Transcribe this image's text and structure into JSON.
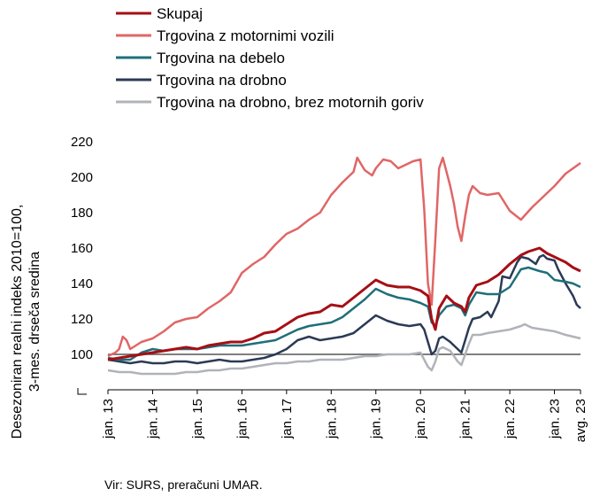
{
  "chart_data": {
    "type": "line",
    "ylabel_lines": [
      "Desezoniran realni indeks 2010=100,",
      "3-mes. drseča sredina"
    ],
    "ylim": [
      80,
      220
    ],
    "yticks": [
      100,
      120,
      140,
      160,
      180,
      200,
      220
    ],
    "reference_line": 100,
    "x_tick_labels": [
      "jan. 13",
      "jan. 14",
      "jan. 15",
      "jan. 16",
      "jan. 17",
      "jan. 18",
      "jan. 19",
      "jan. 20",
      "jan. 21",
      "jan. 22",
      "jan. 23",
      "avg. 23"
    ],
    "x_tick_months": [
      0,
      12,
      24,
      36,
      48,
      60,
      72,
      84,
      96,
      108,
      120,
      127
    ],
    "x_range_months": [
      0,
      127
    ],
    "legend_position": "top-left",
    "source": "Vir: SURS, preračuni UMAR.",
    "series": [
      {
        "name": "Skupaj",
        "color": "#a50f15",
        "points": [
          [
            0,
            97
          ],
          [
            3,
            98
          ],
          [
            6,
            99
          ],
          [
            9,
            100
          ],
          [
            12,
            101
          ],
          [
            15,
            102
          ],
          [
            18,
            103
          ],
          [
            21,
            104
          ],
          [
            24,
            103
          ],
          [
            27,
            105
          ],
          [
            30,
            106
          ],
          [
            33,
            107
          ],
          [
            36,
            107
          ],
          [
            39,
            109
          ],
          [
            42,
            112
          ],
          [
            45,
            113
          ],
          [
            48,
            117
          ],
          [
            51,
            121
          ],
          [
            54,
            123
          ],
          [
            57,
            124
          ],
          [
            60,
            128
          ],
          [
            63,
            127
          ],
          [
            66,
            132
          ],
          [
            69,
            137
          ],
          [
            72,
            142
          ],
          [
            75,
            139
          ],
          [
            78,
            138
          ],
          [
            81,
            138
          ],
          [
            84,
            136
          ],
          [
            86,
            133
          ],
          [
            87,
            120
          ],
          [
            88,
            114
          ],
          [
            89,
            126
          ],
          [
            91,
            133
          ],
          [
            93,
            129
          ],
          [
            95,
            127
          ],
          [
            96,
            124
          ],
          [
            97,
            132
          ],
          [
            99,
            139
          ],
          [
            102,
            141
          ],
          [
            105,
            145
          ],
          [
            108,
            151
          ],
          [
            111,
            156
          ],
          [
            113,
            158
          ],
          [
            116,
            160
          ],
          [
            118,
            157
          ],
          [
            120,
            155
          ],
          [
            123,
            152
          ],
          [
            125,
            149
          ],
          [
            127,
            147
          ]
        ]
      },
      {
        "name": "Trgovina z motornimi vozili",
        "color": "#e06666",
        "points": [
          [
            0,
            99
          ],
          [
            2,
            101
          ],
          [
            3,
            103
          ],
          [
            4,
            110
          ],
          [
            5,
            108
          ],
          [
            6,
            103
          ],
          [
            9,
            107
          ],
          [
            12,
            109
          ],
          [
            15,
            113
          ],
          [
            18,
            118
          ],
          [
            21,
            120
          ],
          [
            24,
            121
          ],
          [
            27,
            126
          ],
          [
            30,
            130
          ],
          [
            33,
            135
          ],
          [
            36,
            146
          ],
          [
            39,
            151
          ],
          [
            42,
            155
          ],
          [
            45,
            162
          ],
          [
            48,
            168
          ],
          [
            51,
            171
          ],
          [
            54,
            176
          ],
          [
            57,
            180
          ],
          [
            60,
            190
          ],
          [
            63,
            197
          ],
          [
            66,
            203
          ],
          [
            67,
            211
          ],
          [
            69,
            204
          ],
          [
            71,
            201
          ],
          [
            72,
            205
          ],
          [
            74,
            210
          ],
          [
            76,
            209
          ],
          [
            78,
            205
          ],
          [
            80,
            207
          ],
          [
            82,
            209
          ],
          [
            84,
            210
          ],
          [
            85,
            182
          ],
          [
            86,
            140
          ],
          [
            87,
            128
          ],
          [
            88,
            165
          ],
          [
            89,
            205
          ],
          [
            90,
            211
          ],
          [
            92,
            195
          ],
          [
            93,
            185
          ],
          [
            94,
            172
          ],
          [
            95,
            164
          ],
          [
            96,
            178
          ],
          [
            97,
            190
          ],
          [
            98,
            195
          ],
          [
            100,
            191
          ],
          [
            102,
            190
          ],
          [
            105,
            191
          ],
          [
            108,
            181
          ],
          [
            111,
            176
          ],
          [
            114,
            183
          ],
          [
            117,
            189
          ],
          [
            120,
            195
          ],
          [
            123,
            202
          ],
          [
            125,
            205
          ],
          [
            127,
            208
          ]
        ]
      },
      {
        "name": "Trgovina na debelo",
        "color": "#1f6f7a",
        "points": [
          [
            0,
            98
          ],
          [
            3,
            97
          ],
          [
            6,
            97
          ],
          [
            9,
            101
          ],
          [
            12,
            103
          ],
          [
            15,
            102
          ],
          [
            18,
            103
          ],
          [
            21,
            103
          ],
          [
            24,
            103
          ],
          [
            27,
            104
          ],
          [
            30,
            105
          ],
          [
            33,
            105
          ],
          [
            36,
            105
          ],
          [
            39,
            106
          ],
          [
            42,
            107
          ],
          [
            45,
            108
          ],
          [
            48,
            111
          ],
          [
            51,
            114
          ],
          [
            54,
            116
          ],
          [
            57,
            117
          ],
          [
            60,
            118
          ],
          [
            63,
            121
          ],
          [
            66,
            126
          ],
          [
            69,
            131
          ],
          [
            72,
            137
          ],
          [
            75,
            134
          ],
          [
            78,
            132
          ],
          [
            81,
            131
          ],
          [
            84,
            129
          ],
          [
            86,
            127
          ],
          [
            87,
            118
          ],
          [
            88,
            116
          ],
          [
            89,
            122
          ],
          [
            91,
            127
          ],
          [
            93,
            128
          ],
          [
            95,
            126
          ],
          [
            96,
            122
          ],
          [
            97,
            128
          ],
          [
            99,
            135
          ],
          [
            102,
            134
          ],
          [
            105,
            134
          ],
          [
            108,
            138
          ],
          [
            111,
            148
          ],
          [
            113,
            149
          ],
          [
            116,
            147
          ],
          [
            118,
            146
          ],
          [
            120,
            142
          ],
          [
            123,
            141
          ],
          [
            125,
            140
          ],
          [
            127,
            138
          ]
        ]
      },
      {
        "name": "Trgovina na drobno",
        "color": "#2b3a55",
        "points": [
          [
            0,
            97
          ],
          [
            3,
            96
          ],
          [
            6,
            95
          ],
          [
            9,
            96
          ],
          [
            12,
            95
          ],
          [
            15,
            95
          ],
          [
            18,
            96
          ],
          [
            21,
            96
          ],
          [
            24,
            95
          ],
          [
            27,
            96
          ],
          [
            30,
            97
          ],
          [
            33,
            96
          ],
          [
            36,
            96
          ],
          [
            39,
            97
          ],
          [
            42,
            98
          ],
          [
            45,
            100
          ],
          [
            48,
            103
          ],
          [
            51,
            108
          ],
          [
            54,
            110
          ],
          [
            57,
            108
          ],
          [
            60,
            109
          ],
          [
            63,
            110
          ],
          [
            66,
            112
          ],
          [
            69,
            117
          ],
          [
            72,
            122
          ],
          [
            75,
            119
          ],
          [
            78,
            117
          ],
          [
            81,
            116
          ],
          [
            84,
            117
          ],
          [
            85,
            114
          ],
          [
            86,
            107
          ],
          [
            87,
            100
          ],
          [
            88,
            102
          ],
          [
            89,
            109
          ],
          [
            90,
            110
          ],
          [
            92,
            107
          ],
          [
            94,
            103
          ],
          [
            95,
            101
          ],
          [
            96,
            108
          ],
          [
            97,
            115
          ],
          [
            98,
            120
          ],
          [
            100,
            121
          ],
          [
            102,
            124
          ],
          [
            103,
            121
          ],
          [
            105,
            130
          ],
          [
            106,
            144
          ],
          [
            108,
            143
          ],
          [
            110,
            152
          ],
          [
            111,
            155
          ],
          [
            113,
            154
          ],
          [
            115,
            151
          ],
          [
            116,
            155
          ],
          [
            117,
            156
          ],
          [
            118,
            154
          ],
          [
            120,
            153
          ],
          [
            121,
            148
          ],
          [
            123,
            140
          ],
          [
            125,
            133
          ],
          [
            126,
            128
          ],
          [
            127,
            126
          ]
        ]
      },
      {
        "name": "Trgovina na drobno, brez motornih goriv",
        "color": "#b0b3b8",
        "points": [
          [
            0,
            91
          ],
          [
            3,
            90
          ],
          [
            6,
            90
          ],
          [
            9,
            89
          ],
          [
            12,
            89
          ],
          [
            15,
            89
          ],
          [
            18,
            89
          ],
          [
            21,
            90
          ],
          [
            24,
            90
          ],
          [
            27,
            91
          ],
          [
            30,
            91
          ],
          [
            33,
            92
          ],
          [
            36,
            92
          ],
          [
            39,
            93
          ],
          [
            42,
            94
          ],
          [
            45,
            95
          ],
          [
            48,
            95
          ],
          [
            51,
            96
          ],
          [
            54,
            96
          ],
          [
            57,
            97
          ],
          [
            60,
            97
          ],
          [
            63,
            97
          ],
          [
            66,
            98
          ],
          [
            69,
            99
          ],
          [
            72,
            99
          ],
          [
            75,
            100
          ],
          [
            78,
            100
          ],
          [
            81,
            100
          ],
          [
            84,
            101
          ],
          [
            85,
            97
          ],
          [
            86,
            93
          ],
          [
            87,
            91
          ],
          [
            88,
            96
          ],
          [
            89,
            103
          ],
          [
            90,
            104
          ],
          [
            92,
            102
          ],
          [
            94,
            96
          ],
          [
            95,
            94
          ],
          [
            96,
            100
          ],
          [
            97,
            106
          ],
          [
            98,
            111
          ],
          [
            100,
            111
          ],
          [
            102,
            112
          ],
          [
            105,
            113
          ],
          [
            108,
            114
          ],
          [
            111,
            116
          ],
          [
            112,
            117
          ],
          [
            114,
            115
          ],
          [
            117,
            114
          ],
          [
            120,
            113
          ],
          [
            123,
            111
          ],
          [
            125,
            110
          ],
          [
            127,
            109
          ]
        ]
      }
    ]
  }
}
